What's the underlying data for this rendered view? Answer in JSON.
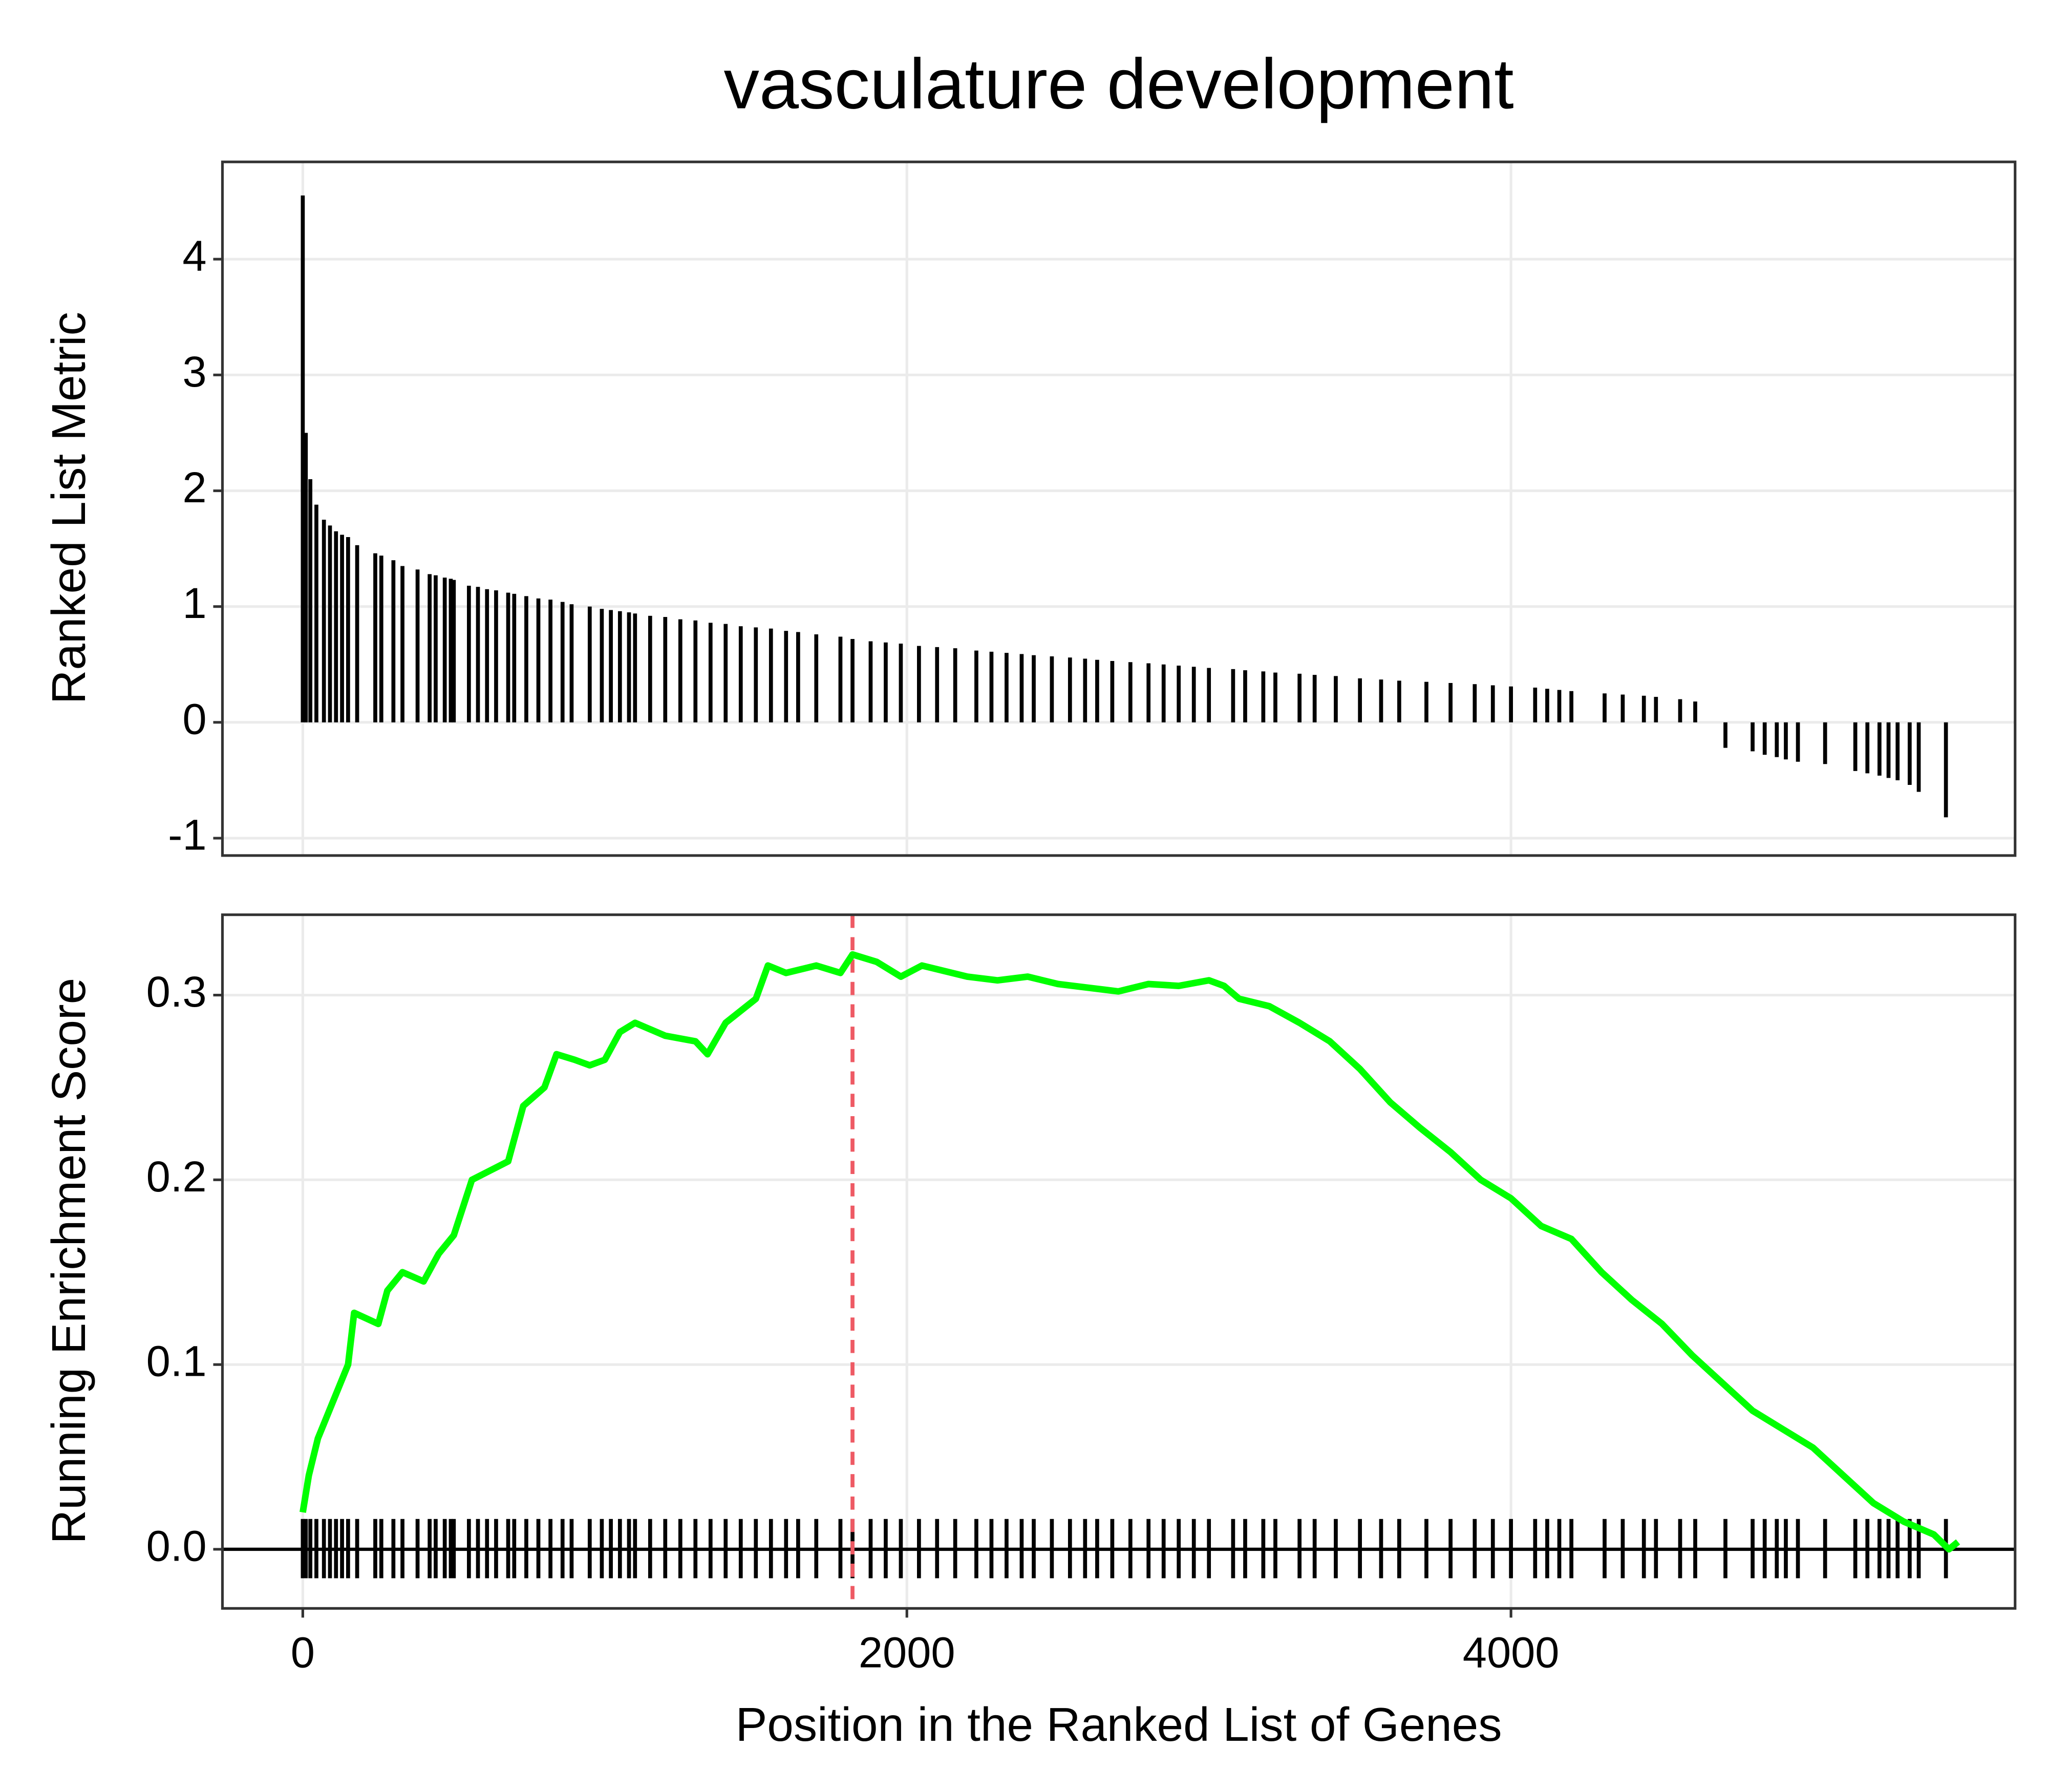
{
  "chart_data": [
    {
      "type": "bar",
      "title": "vasculature development",
      "y_label": "Ranked List Metric",
      "color": "#000000",
      "x": [
        0,
        10,
        25,
        45,
        70,
        90,
        110,
        130,
        150,
        180,
        240,
        260,
        300,
        330,
        380,
        420,
        440,
        470,
        490,
        500,
        550,
        580,
        610,
        640,
        680,
        700,
        740,
        780,
        820,
        860,
        890,
        950,
        990,
        1020,
        1050,
        1080,
        1100,
        1150,
        1200,
        1250,
        1300,
        1350,
        1400,
        1450,
        1500,
        1550,
        1600,
        1640,
        1700,
        1780,
        1820,
        1880,
        1930,
        1980,
        2040,
        2100,
        2160,
        2230,
        2280,
        2330,
        2380,
        2420,
        2480,
        2540,
        2590,
        2630,
        2680,
        2740,
        2800,
        2850,
        2900,
        2950,
        3000,
        3080,
        3120,
        3180,
        3220,
        3300,
        3350,
        3420,
        3500,
        3570,
        3630,
        3720,
        3800,
        3880,
        3940,
        4000,
        4080,
        4120,
        4160,
        4200,
        4310,
        4370,
        4440,
        4480,
        4560,
        4610,
        4710,
        4800,
        4840,
        4880,
        4910,
        4950,
        5040,
        5140,
        5180,
        5220,
        5250,
        5280,
        5320,
        5350,
        5440
      ],
      "values": [
        4.55,
        2.5,
        2.1,
        1.88,
        1.75,
        1.7,
        1.65,
        1.62,
        1.6,
        1.53,
        1.46,
        1.44,
        1.4,
        1.35,
        1.32,
        1.28,
        1.27,
        1.25,
        1.24,
        1.23,
        1.18,
        1.17,
        1.15,
        1.14,
        1.12,
        1.11,
        1.09,
        1.07,
        1.06,
        1.04,
        1.02,
        1.0,
        0.98,
        0.97,
        0.96,
        0.95,
        0.94,
        0.92,
        0.91,
        0.89,
        0.88,
        0.86,
        0.85,
        0.83,
        0.82,
        0.81,
        0.79,
        0.78,
        0.76,
        0.74,
        0.72,
        0.7,
        0.69,
        0.68,
        0.66,
        0.65,
        0.64,
        0.62,
        0.61,
        0.6,
        0.59,
        0.58,
        0.57,
        0.56,
        0.55,
        0.54,
        0.53,
        0.52,
        0.51,
        0.5,
        0.49,
        0.48,
        0.47,
        0.46,
        0.45,
        0.44,
        0.43,
        0.42,
        0.41,
        0.4,
        0.38,
        0.37,
        0.36,
        0.35,
        0.34,
        0.33,
        0.32,
        0.31,
        0.3,
        0.29,
        0.28,
        0.27,
        0.25,
        0.24,
        0.23,
        0.22,
        0.2,
        0.18,
        -0.22,
        -0.25,
        -0.28,
        -0.3,
        -0.32,
        -0.34,
        -0.36,
        -0.42,
        -0.44,
        -0.46,
        -0.48,
        -0.5,
        -0.54,
        -0.6,
        -0.82
      ],
      "xlim": [
        -266,
        5669
      ],
      "xticks": [
        0,
        2000,
        4000
      ],
      "ylim": [
        -1.15,
        4.84
      ],
      "yticks": [
        -1,
        0,
        1,
        2,
        3,
        4
      ],
      "grid": true
    },
    {
      "type": "line",
      "y_label": "Running Enrichment Score",
      "x_label": "Position in the Ranked List of Genes",
      "color": "#00ff00",
      "x": [
        0,
        20,
        50,
        100,
        150,
        170,
        250,
        280,
        330,
        400,
        450,
        500,
        560,
        620,
        680,
        730,
        800,
        840,
        900,
        950,
        1000,
        1050,
        1100,
        1200,
        1300,
        1340,
        1400,
        1500,
        1540,
        1600,
        1700,
        1780,
        1820,
        1900,
        1980,
        2050,
        2200,
        2300,
        2400,
        2500,
        2600,
        2700,
        2800,
        2900,
        3000,
        3050,
        3100,
        3200,
        3300,
        3400,
        3500,
        3600,
        3700,
        3800,
        3900,
        4000,
        4100,
        4200,
        4300,
        4400,
        4500,
        4600,
        4700,
        4800,
        4900,
        5000,
        5100,
        5200,
        5300,
        5400,
        5450,
        5480
      ],
      "values": [
        0.02,
        0.04,
        0.06,
        0.08,
        0.1,
        0.128,
        0.122,
        0.14,
        0.15,
        0.145,
        0.16,
        0.17,
        0.2,
        0.205,
        0.21,
        0.24,
        0.25,
        0.268,
        0.265,
        0.262,
        0.265,
        0.28,
        0.285,
        0.278,
        0.275,
        0.268,
        0.285,
        0.298,
        0.316,
        0.312,
        0.316,
        0.312,
        0.322,
        0.318,
        0.31,
        0.316,
        0.31,
        0.308,
        0.31,
        0.306,
        0.304,
        0.302,
        0.306,
        0.305,
        0.308,
        0.305,
        0.298,
        0.294,
        0.285,
        0.275,
        0.26,
        0.242,
        0.228,
        0.215,
        0.2,
        0.19,
        0.175,
        0.168,
        0.15,
        0.135,
        0.122,
        0.105,
        0.09,
        0.075,
        0.065,
        0.055,
        0.04,
        0.025,
        0.015,
        0.008,
        0.0,
        0.004
      ],
      "vline": 1820,
      "vline_color": "#ee5a64",
      "xlim": [
        -266,
        5669
      ],
      "xticks": [
        0,
        2000,
        4000
      ],
      "ylim": [
        -0.032,
        0.3435
      ],
      "yticks": [
        {
          "value": 0,
          "label": "0.0"
        },
        0.1,
        0.2,
        0.3
      ],
      "grid": true
    }
  ]
}
